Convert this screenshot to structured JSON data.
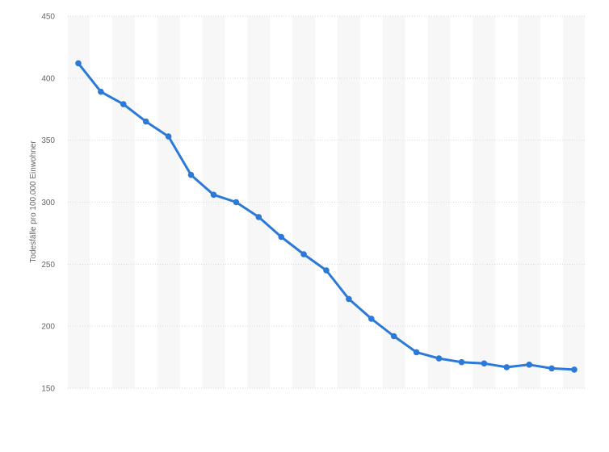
{
  "chart_data": {
    "type": "line",
    "title": "",
    "xlabel": "",
    "ylabel": "Todesfälle pro 100.000 Einwohner",
    "ylim": [
      150,
      450
    ],
    "y_ticks": [
      150,
      200,
      250,
      300,
      350,
      400,
      450
    ],
    "grid": true,
    "legend": "none",
    "series": [
      {
        "values": [
          412,
          389,
          379,
          365,
          353,
          322,
          306,
          300,
          288,
          272,
          258,
          245,
          222,
          206,
          192,
          179,
          174,
          171,
          170,
          167,
          169,
          166,
          165
        ]
      }
    ]
  },
  "colors": {
    "line": "#2b79d8",
    "point": "#2b79d8",
    "grid": "#d9d9d9",
    "band": "#f7f7f7",
    "tick_text": "#666666"
  }
}
